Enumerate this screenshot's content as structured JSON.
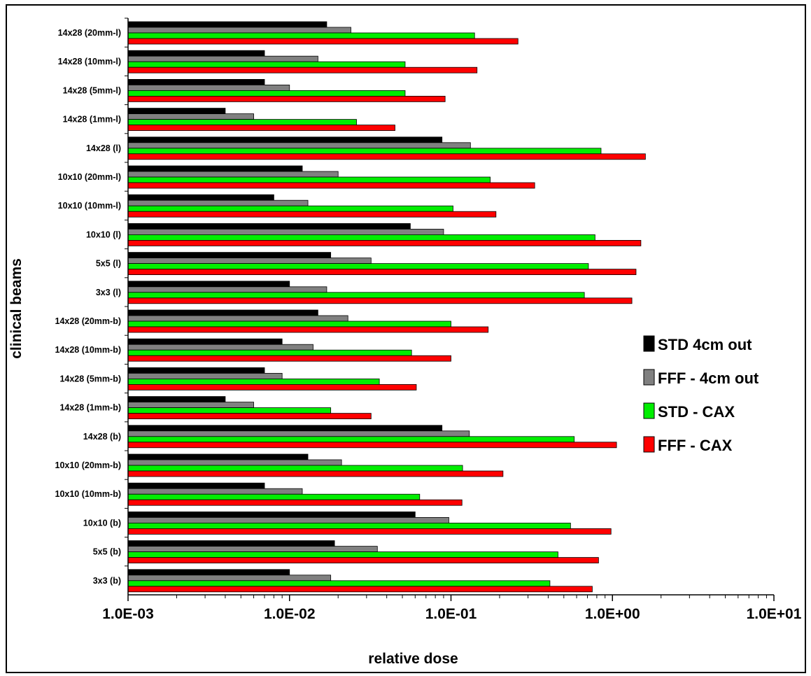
{
  "chart_data": {
    "type": "bar",
    "orientation": "horizontal",
    "x_scale": "log",
    "xlim": [
      0.001,
      10
    ],
    "xlabel": "relative dose",
    "ylabel": "clinical beams",
    "x_tick_labels": [
      "1.0E-03",
      "1.0E-02",
      "1.0E-01",
      "1.0E+00",
      "1.0E+01"
    ],
    "x_ticks": [
      0.001,
      0.01,
      0.1,
      1,
      10
    ],
    "grid": false,
    "legend_position": "right",
    "categories": [
      "14x28 (20mm-l)",
      "14x28 (10mm-l)",
      "14x28 (5mm-l)",
      "14x28 (1mm-l)",
      "14x28 (l)",
      "10x10 (20mm-l)",
      "10x10 (10mm-l)",
      "10x10 (l)",
      "5x5 (l)",
      "3x3 (l)",
      "14x28 (20mm-b)",
      "14x28 (10mm-b)",
      "14x28 (5mm-b)",
      "14x28 (1mm-b)",
      "14x28 (b)",
      "10x10 (20mm-b)",
      "10x10 (10mm-b)",
      "10x10 (b)",
      "5x5 (b)",
      "3x3 (b)"
    ],
    "series": [
      {
        "name": "STD 4cm out",
        "color": "#000000",
        "values": [
          0.017,
          0.007,
          0.007,
          0.004,
          0.088,
          0.012,
          0.008,
          0.056,
          0.018,
          0.01,
          0.015,
          0.009,
          0.007,
          0.004,
          0.088,
          0.013,
          0.007,
          0.06,
          0.019,
          0.01
        ]
      },
      {
        "name": "FFF - 4cm out",
        "color": "#808080",
        "values": [
          0.024,
          0.015,
          0.01,
          0.006,
          0.132,
          0.02,
          0.013,
          0.09,
          0.032,
          0.017,
          0.023,
          0.014,
          0.009,
          0.006,
          0.13,
          0.021,
          0.012,
          0.097,
          0.035,
          0.018
        ]
      },
      {
        "name": "STD - CAX",
        "color": "#00ee00",
        "values": [
          0.14,
          0.052,
          0.052,
          0.026,
          0.85,
          0.175,
          0.103,
          0.78,
          0.71,
          0.67,
          0.1,
          0.057,
          0.036,
          0.018,
          0.58,
          0.118,
          0.064,
          0.55,
          0.46,
          0.41
        ]
      },
      {
        "name": "FFF - CAX",
        "color": "#ff0000",
        "values": [
          0.26,
          0.145,
          0.092,
          0.045,
          1.6,
          0.33,
          0.19,
          1.5,
          1.4,
          1.32,
          0.17,
          0.1,
          0.061,
          0.032,
          1.06,
          0.21,
          0.117,
          0.98,
          0.82,
          0.75
        ]
      }
    ]
  }
}
